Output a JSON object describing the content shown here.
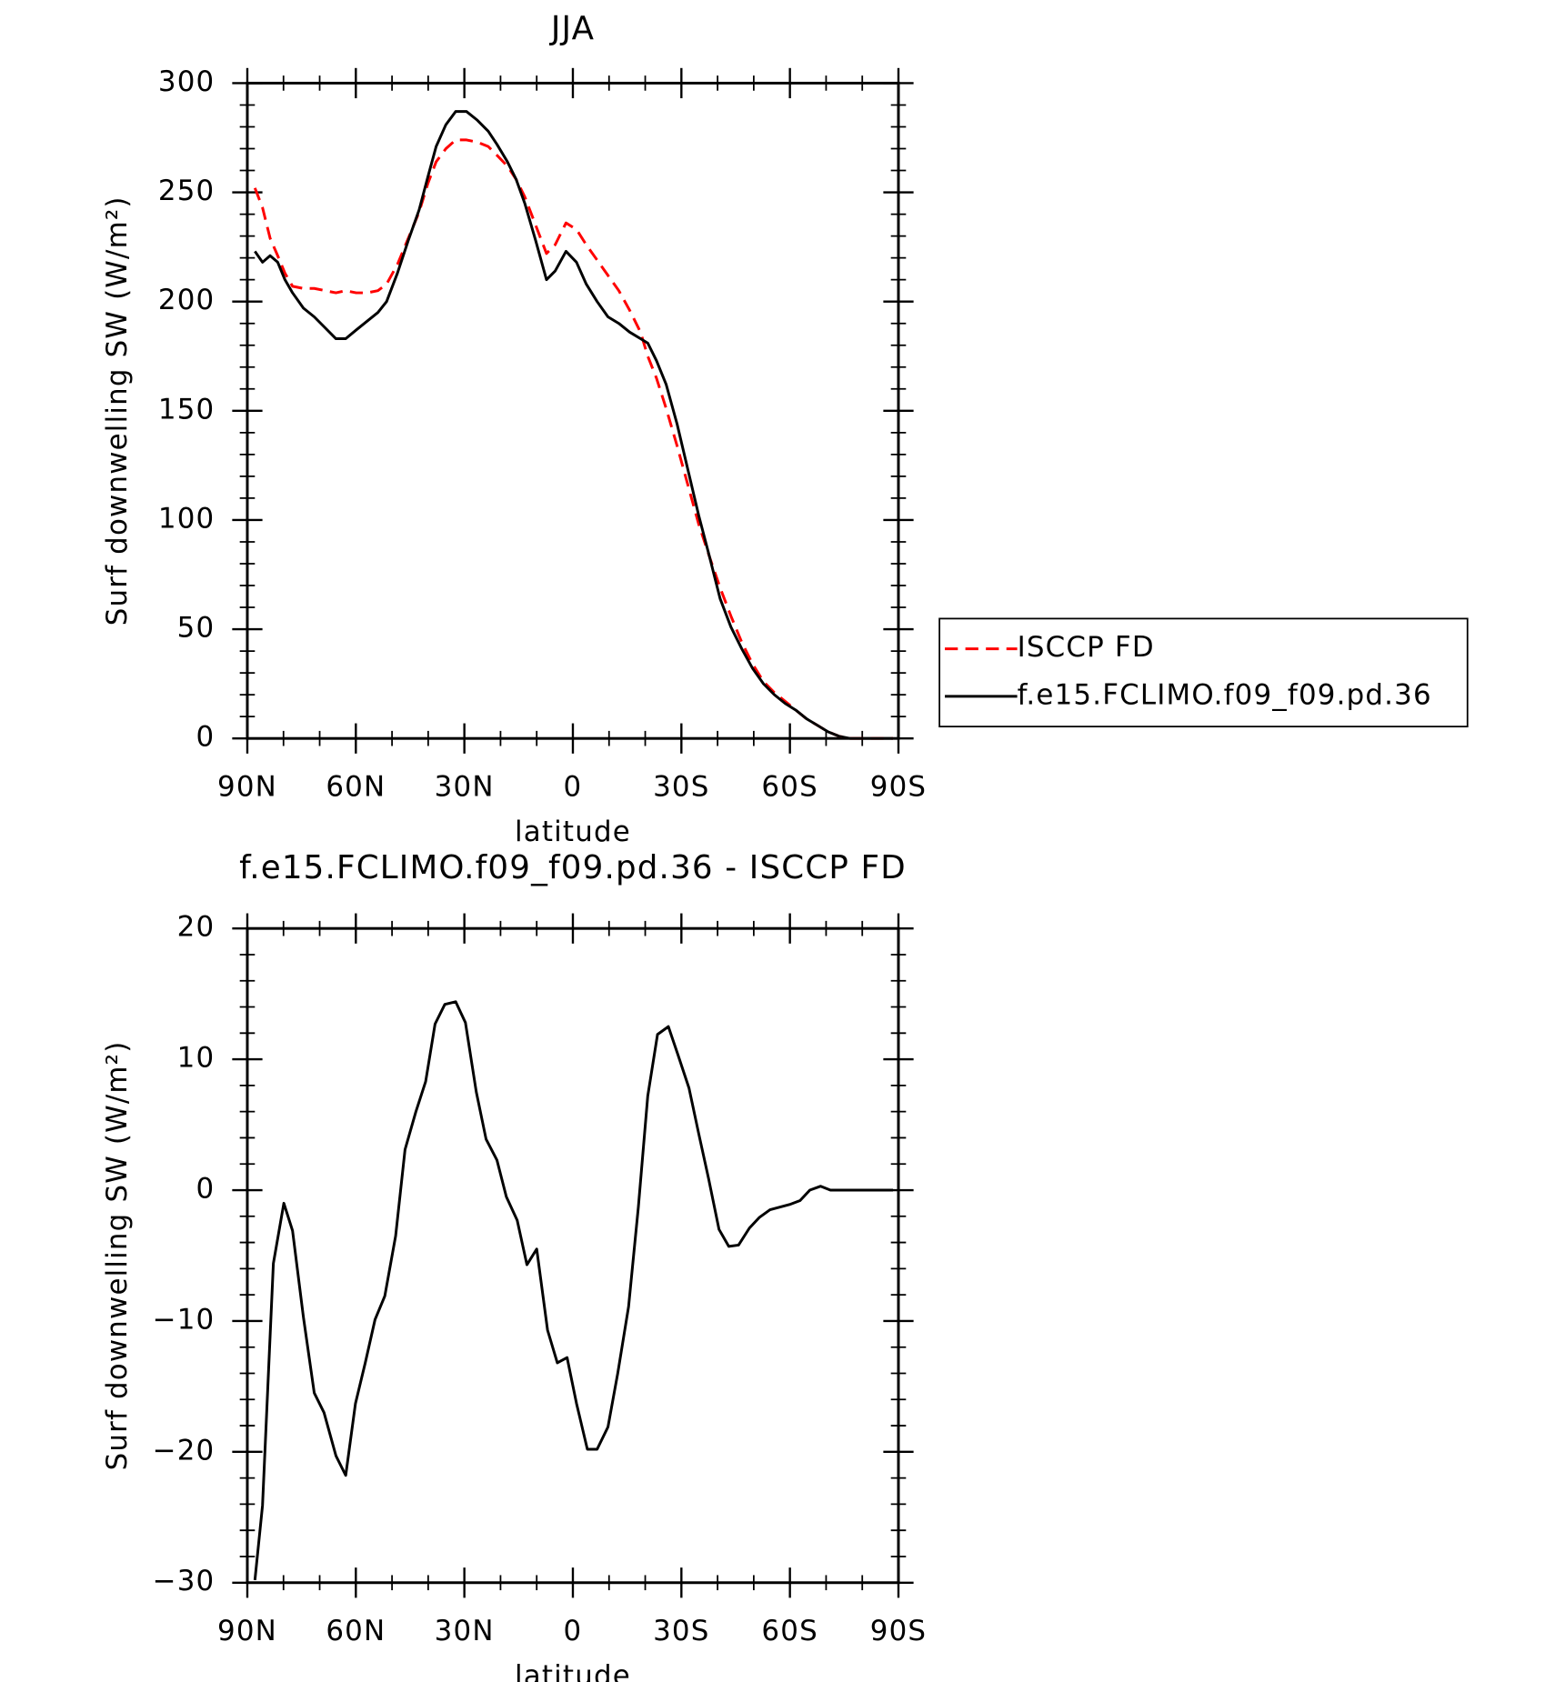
{
  "chart_data": [
    {
      "type": "line",
      "title": "JJA",
      "x_label": "latitude",
      "y_label": "Surf downwelling SW (W/m²)",
      "xlim": [
        90,
        -90
      ],
      "xticks": [
        {
          "value": 90,
          "label": "90N"
        },
        {
          "value": 60,
          "label": "60N"
        },
        {
          "value": 30,
          "label": "30N"
        },
        0,
        {
          "value": -30,
          "label": "30S"
        },
        {
          "value": -60,
          "label": "60S"
        },
        {
          "value": -90,
          "label": "90S"
        }
      ],
      "ylim": [
        0,
        300
      ],
      "yticks": [
        0,
        50,
        100,
        150,
        200,
        250,
        300
      ],
      "minor_x": 2,
      "minor_y": 4,
      "legend": "right",
      "x": [
        87.9,
        85.8,
        83.7,
        81.6,
        79.6,
        77.5,
        74.5,
        71.5,
        68.5,
        65.5,
        62.8,
        59.9,
        56.9,
        53.9,
        51.5,
        48.5,
        45.5,
        42.5,
        40.1,
        37.8,
        35.1,
        32.4,
        29.4,
        26.4,
        23.4,
        21.0,
        18.1,
        15.7,
        13.3,
        10.3,
        7.3,
        4.9,
        1.9,
        -1.0,
        -3.7,
        -6.7,
        -9.7,
        -12.7,
        -15.7,
        -18.7,
        -20.7,
        -23.1,
        -25.8,
        -28.8,
        -31.8,
        -34.8,
        -37.8,
        -40.7,
        -43.7,
        -46.7,
        -49.7,
        -52.7,
        -55.7,
        -58.7,
        -61.6,
        -64.6,
        -67.6,
        -70.6,
        -73.6,
        -76.6,
        -79.5,
        -82.5,
        -85.5,
        -88.5
      ],
      "series": [
        {
          "name": "ISCCP FD",
          "color": "#ff0000",
          "dash": true,
          "values": [
            252,
            243,
            229,
            221,
            213,
            207,
            206,
            206,
            205,
            204,
            205,
            204,
            204,
            205,
            208,
            217,
            229,
            241,
            254,
            264,
            270,
            274,
            274,
            273,
            271,
            267,
            262,
            256,
            248,
            235,
            222,
            226,
            236,
            233,
            226,
            219,
            212,
            205,
            196,
            186,
            175,
            165,
            151,
            134,
            116,
            98,
            83,
            69,
            56,
            44,
            34,
            26,
            21,
            17,
            13,
            9,
            6,
            3,
            1,
            0,
            0,
            0,
            0,
            0
          ]
        },
        {
          "name": "f.e15.FCLIMO.f09_f09.pd.36",
          "color": "#000000",
          "dash": false,
          "values": [
            223,
            218,
            221,
            218,
            210,
            204,
            197,
            193,
            188,
            183,
            183,
            187,
            191,
            195,
            200,
            213,
            228,
            242,
            257,
            271,
            281,
            287,
            287,
            283,
            278,
            272,
            264,
            256,
            245,
            228,
            210,
            214,
            223,
            218,
            208,
            200,
            193,
            190,
            186,
            183,
            181,
            173,
            162,
            144,
            123,
            102,
            83,
            64,
            51,
            41,
            32,
            25,
            20,
            16,
            13,
            9,
            6,
            3,
            1,
            0,
            0,
            0,
            0,
            0
          ]
        }
      ]
    },
    {
      "type": "line",
      "title": "f.e15.FCLIMO.f09_f09.pd.36 - ISCCP FD",
      "x_label": "latitude",
      "y_label": "Surf downwelling SW (W/m²)",
      "xlim": [
        90,
        -90
      ],
      "xticks": [
        {
          "value": 90,
          "label": "90N"
        },
        {
          "value": 60,
          "label": "60N"
        },
        {
          "value": 30,
          "label": "30N"
        },
        0,
        {
          "value": -30,
          "label": "30S"
        },
        {
          "value": -60,
          "label": "60S"
        },
        {
          "value": -90,
          "label": "90S"
        }
      ],
      "ylim": [
        -30,
        20
      ],
      "yticks": [
        {
          "value": -30,
          "label": "−30"
        },
        {
          "value": -20,
          "label": "−20"
        },
        {
          "value": -10,
          "label": "−10"
        },
        0,
        10,
        20
      ],
      "minor_x": 2,
      "minor_y": 4,
      "x": [
        87.9,
        85.8,
        82.8,
        79.9,
        77.5,
        74.5,
        71.5,
        68.8,
        65.5,
        62.8,
        60.1,
        57.4,
        54.7,
        52.0,
        49.0,
        46.4,
        43.4,
        40.7,
        38.1,
        35.4,
        32.4,
        29.7,
        26.7,
        24.0,
        21.0,
        18.4,
        15.4,
        12.7,
        10.0,
        7.0,
        4.3,
        1.6,
        -1.0,
        -4.0,
        -6.7,
        -9.7,
        -12.4,
        -15.4,
        -18.1,
        -20.7,
        -23.4,
        -26.4,
        -29.1,
        -32.1,
        -34.8,
        -37.5,
        -40.4,
        -43.1,
        -45.8,
        -48.8,
        -51.5,
        -54.5,
        -57.2,
        -59.9,
        -62.8,
        -65.5,
        -68.5,
        -71.2,
        -73.9,
        -76.9,
        -79.5,
        -82.5,
        -85.5,
        -88.5
      ],
      "series": [
        {
          "color": "#000000",
          "dash": false,
          "values": [
            -29.8,
            -24.1,
            -5.6,
            -1.0,
            -3.1,
            -9.7,
            -15.5,
            -17.0,
            -20.3,
            -21.8,
            -16.3,
            -13.2,
            -9.9,
            -8.1,
            -3.5,
            3.1,
            6.0,
            8.3,
            12.7,
            14.2,
            14.4,
            12.8,
            7.5,
            3.9,
            2.3,
            -0.5,
            -2.3,
            -5.7,
            -4.5,
            -10.7,
            -13.2,
            -12.8,
            -16.3,
            -19.8,
            -19.8,
            -18.1,
            -14.0,
            -8.9,
            -1.3,
            7.2,
            11.9,
            12.5,
            10.3,
            7.8,
            4.3,
            0.9,
            -3.0,
            -4.3,
            -4.2,
            -2.9,
            -2.1,
            -1.5,
            -1.3,
            -1.1,
            -0.8,
            0,
            0.3,
            0,
            0,
            0,
            0,
            0,
            0,
            0
          ]
        }
      ]
    }
  ]
}
